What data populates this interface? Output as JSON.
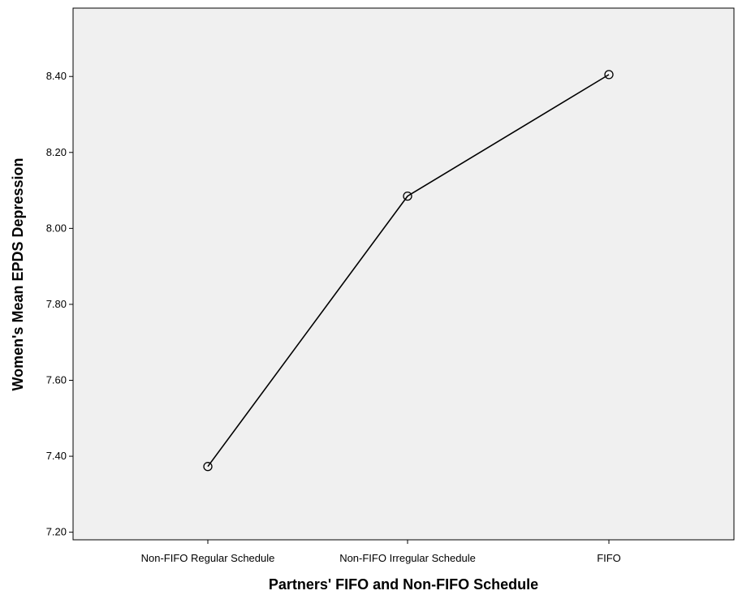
{
  "chart_data": {
    "type": "line",
    "title": "",
    "xlabel": "Partners' FIFO and Non-FIFO Schedule",
    "ylabel": "Women's Mean EPDS Depression",
    "categories": [
      "Non-FIFO Regular Schedule",
      "Non-FIFO Irregular Schedule",
      "FIFO"
    ],
    "series": [
      {
        "values": [
          7.373,
          8.085,
          8.405
        ]
      }
    ],
    "ylim": [
      7.18,
      8.58
    ],
    "yticks": [
      7.2,
      7.4,
      7.6,
      7.8,
      8.0,
      8.2,
      8.4
    ],
    "ytick_labels": [
      "7.20",
      "7.40",
      "7.60",
      "7.80",
      "8.00",
      "8.20",
      "8.40"
    ],
    "grid": false,
    "markers": "open-circle",
    "colors": {
      "plot_background": "#f0f0f0",
      "line": "#000000",
      "axis": "#000000"
    }
  }
}
